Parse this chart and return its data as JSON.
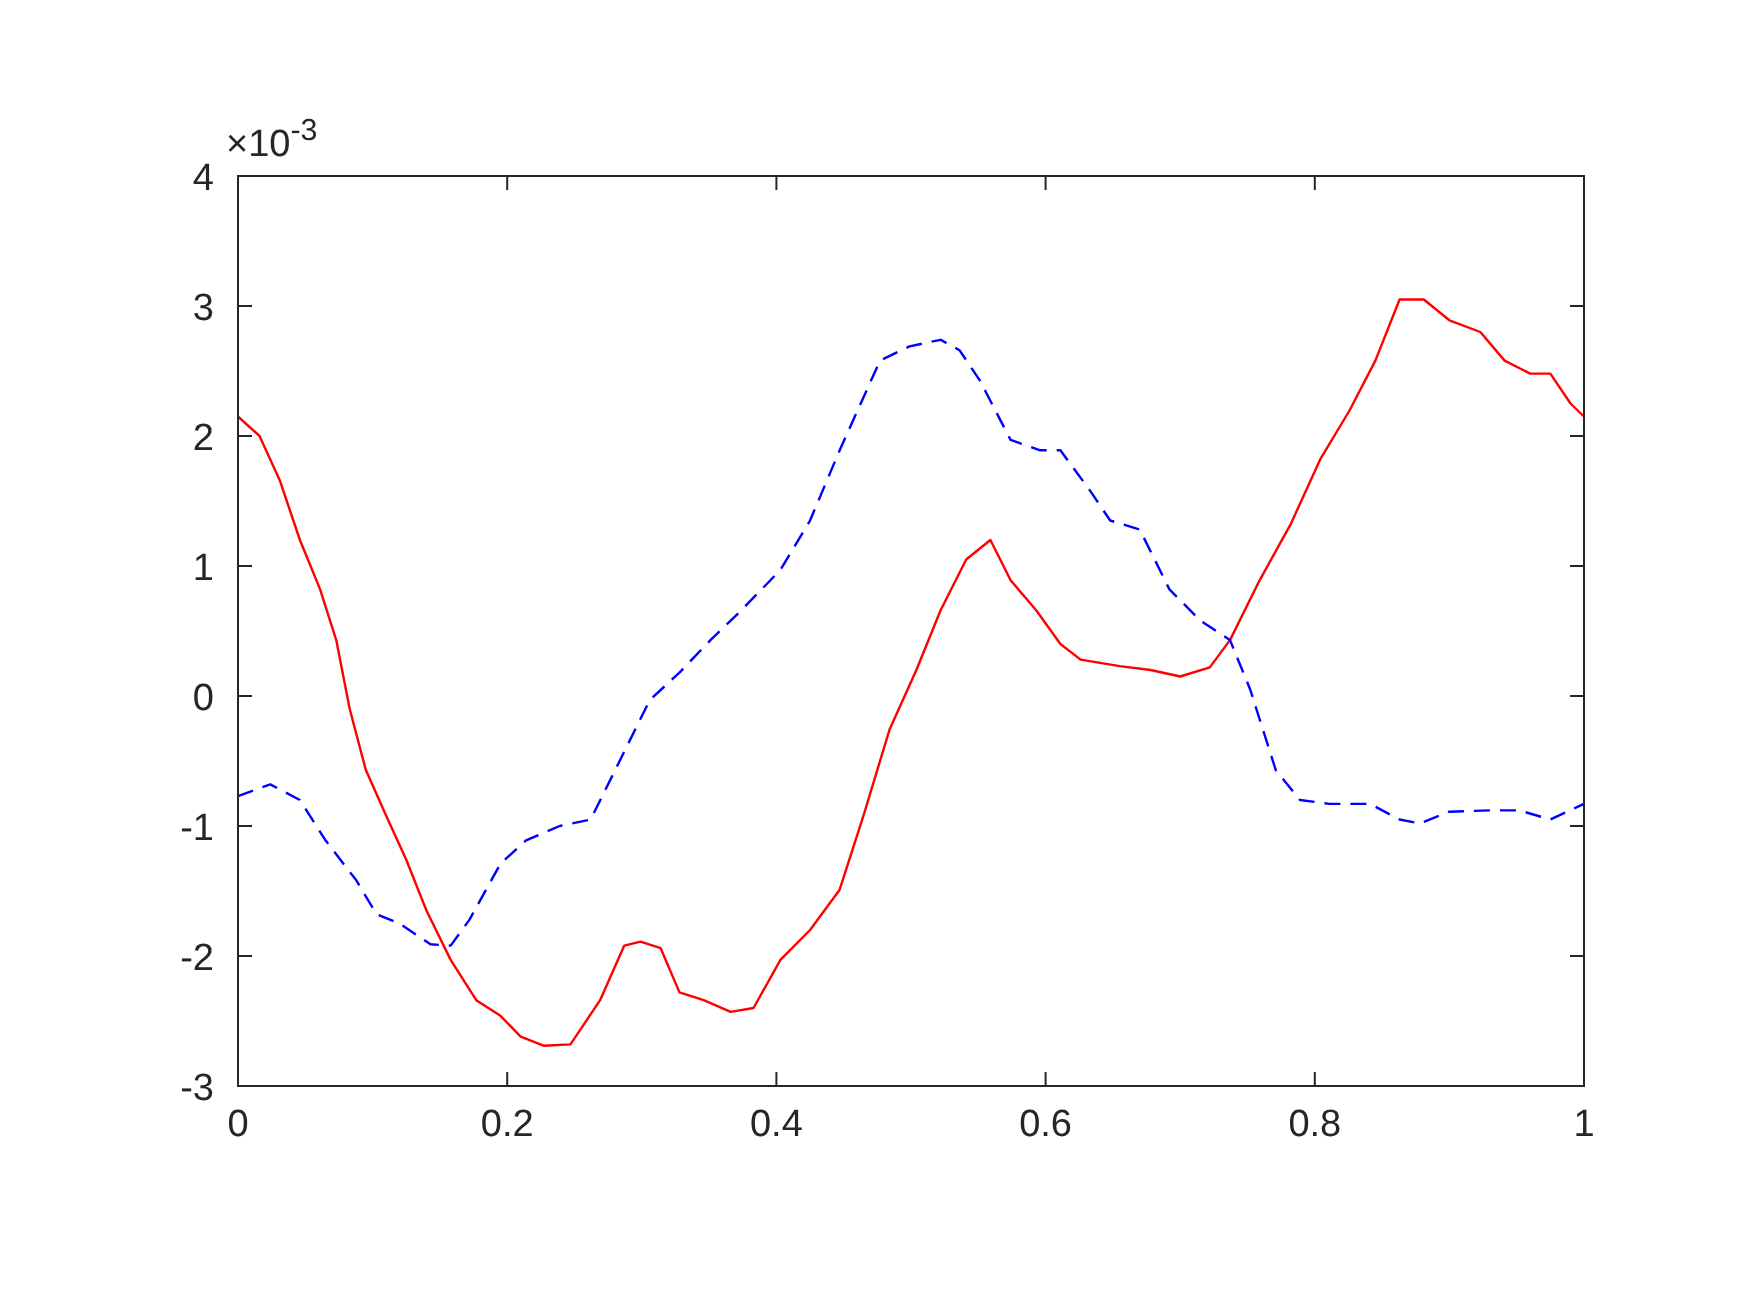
{
  "chart_data": {
    "type": "line",
    "xlim": [
      0,
      1
    ],
    "ylim": [
      -3,
      4
    ],
    "xticks": [
      0,
      0.2,
      0.4,
      0.6,
      0.8,
      1
    ],
    "yticks": [
      -3,
      -2,
      -1,
      0,
      1,
      2,
      3,
      4
    ],
    "annotations": [
      "×10$^{-3}$"
    ],
    "series": [
      {
        "color": "#ff0000",
        "line_style": "solid",
        "x": [
          0,
          0.016,
          0.031,
          0.046,
          0.061,
          0.073,
          0.083,
          0.095,
          0.11,
          0.125,
          0.14,
          0.158,
          0.177,
          0.195,
          0.21,
          0.227,
          0.247,
          0.269,
          0.287,
          0.299,
          0.314,
          0.328,
          0.346,
          0.366,
          0.383,
          0.403,
          0.425,
          0.447,
          0.465,
          0.484,
          0.504,
          0.522,
          0.541,
          0.559,
          0.574,
          0.593,
          0.611,
          0.626,
          0.655,
          0.678,
          0.7,
          0.722,
          0.737,
          0.759,
          0.782,
          0.804,
          0.826,
          0.845,
          0.863,
          0.881,
          0.9,
          0.923,
          0.941,
          0.96,
          0.975,
          0.99,
          1
        ],
        "values": [
          2.15,
          2.0,
          1.66,
          1.2,
          0.82,
          0.43,
          -0.1,
          -0.57,
          -0.92,
          -1.26,
          -1.65,
          -2.03,
          -2.34,
          -2.46,
          -2.62,
          -2.69,
          -2.68,
          -2.34,
          -1.92,
          -1.89,
          -1.94,
          -2.28,
          -2.34,
          -2.43,
          -2.4,
          -2.03,
          -1.8,
          -1.49,
          -0.91,
          -0.26,
          0.2,
          0.66,
          1.05,
          1.2,
          0.89,
          0.66,
          0.4,
          0.28,
          0.23,
          0.2,
          0.15,
          0.22,
          0.43,
          0.89,
          1.32,
          1.82,
          2.2,
          2.58,
          3.05,
          3.05,
          2.89,
          2.8,
          2.58,
          2.48,
          2.48,
          2.25,
          2.15
        ]
      },
      {
        "color": "#0000ff",
        "line_style": "dashed",
        "x": [
          0,
          0.024,
          0.046,
          0.065,
          0.088,
          0.103,
          0.12,
          0.143,
          0.158,
          0.172,
          0.195,
          0.214,
          0.239,
          0.262,
          0.284,
          0.306,
          0.328,
          0.351,
          0.373,
          0.403,
          0.425,
          0.447,
          0.477,
          0.499,
          0.522,
          0.536,
          0.551,
          0.574,
          0.596,
          0.611,
          0.633,
          0.648,
          0.67,
          0.692,
          0.715,
          0.737,
          0.752,
          0.771,
          0.789,
          0.811,
          0.841,
          0.863,
          0.878,
          0.9,
          0.93,
          0.952,
          0.975,
          1
        ],
        "values": [
          -0.77,
          -0.68,
          -0.8,
          -1.11,
          -1.42,
          -1.68,
          -1.75,
          -1.91,
          -1.92,
          -1.72,
          -1.29,
          -1.11,
          -1.0,
          -0.95,
          -0.49,
          -0.03,
          0.18,
          0.43,
          0.65,
          0.97,
          1.35,
          1.89,
          2.58,
          2.69,
          2.74,
          2.66,
          2.43,
          1.97,
          1.89,
          1.89,
          1.58,
          1.35,
          1.28,
          0.82,
          0.58,
          0.43,
          0.05,
          -0.57,
          -0.8,
          -0.83,
          -0.83,
          -0.95,
          -0.98,
          -0.89,
          -0.88,
          -0.88,
          -0.95,
          -0.83
        ]
      }
    ]
  }
}
